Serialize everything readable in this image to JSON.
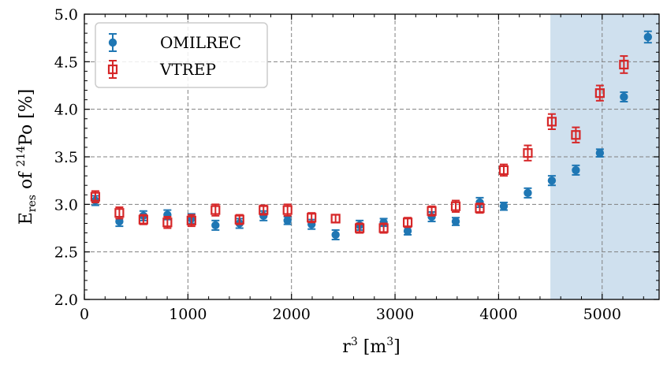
{
  "chart_data": {
    "type": "scatter",
    "title": "",
    "xlabel": {
      "base": "r",
      "sup": "3",
      "unit_open": " [m",
      "unit_sup": "3",
      "unit_close": "]"
    },
    "ylabel": {
      "base": "E",
      "sub": "res",
      "mid": " of ",
      "sup": "214",
      "iso": "Po",
      "unit": " [%]"
    },
    "xlim": [
      0,
      5550
    ],
    "ylim": [
      2.0,
      5.0
    ],
    "xticks": [
      0,
      1000,
      2000,
      3000,
      4000,
      5000
    ],
    "xtick_labels": [
      "0",
      "1000",
      "2000",
      "3000",
      "4000",
      "5000"
    ],
    "yticks": [
      2.0,
      2.5,
      3.0,
      3.5,
      4.0,
      4.5,
      5.0
    ],
    "ytick_labels": [
      "2.0",
      "2.5",
      "3.0",
      "3.5",
      "4.0",
      "4.5",
      "5.0"
    ],
    "grid": true,
    "legend_position": "top-left",
    "shaded_region": {
      "x_from": 4500,
      "x_to": 5550,
      "color": "#cfe0ee"
    },
    "series": [
      {
        "name": "OMILREC",
        "color": "#1f77b4",
        "marker": "circle",
        "x": [
          106,
          338,
          570,
          802,
          1034,
          1266,
          1498,
          1730,
          1962,
          2194,
          2426,
          2658,
          2890,
          3122,
          3354,
          3586,
          3818,
          4050,
          4282,
          4514,
          4746,
          4978,
          5210,
          5442
        ],
        "y": [
          3.04,
          2.82,
          2.88,
          2.89,
          2.85,
          2.78,
          2.8,
          2.88,
          2.83,
          2.79,
          2.68,
          2.78,
          2.81,
          2.72,
          2.87,
          2.82,
          3.02,
          2.98,
          3.12,
          3.25,
          3.36,
          3.54,
          4.13,
          4.76
        ],
        "err": [
          0.05,
          0.05,
          0.05,
          0.05,
          0.05,
          0.05,
          0.05,
          0.05,
          0.04,
          0.05,
          0.05,
          0.05,
          0.04,
          0.04,
          0.05,
          0.04,
          0.05,
          0.04,
          0.05,
          0.05,
          0.05,
          0.04,
          0.05,
          0.06
        ]
      },
      {
        "name": "VTREP",
        "color": "#d62728",
        "marker": "square",
        "x": [
          106,
          338,
          570,
          802,
          1034,
          1266,
          1498,
          1730,
          1962,
          2194,
          2426,
          2658,
          2890,
          3122,
          3354,
          3586,
          3818,
          4050,
          4282,
          4514,
          4746,
          4978,
          5210
        ],
        "y": [
          3.08,
          2.91,
          2.84,
          2.81,
          2.83,
          2.94,
          2.84,
          2.94,
          2.94,
          2.86,
          2.85,
          2.75,
          2.75,
          2.81,
          2.93,
          2.98,
          2.96,
          3.36,
          3.54,
          3.87,
          3.73,
          4.17,
          4.47
        ],
        "err": [
          0.06,
          0.06,
          0.05,
          0.06,
          0.06,
          0.06,
          0.05,
          0.05,
          0.06,
          0.05,
          0.04,
          0.05,
          0.05,
          0.05,
          0.05,
          0.06,
          0.05,
          0.06,
          0.08,
          0.08,
          0.08,
          0.08,
          0.09
        ]
      }
    ]
  }
}
